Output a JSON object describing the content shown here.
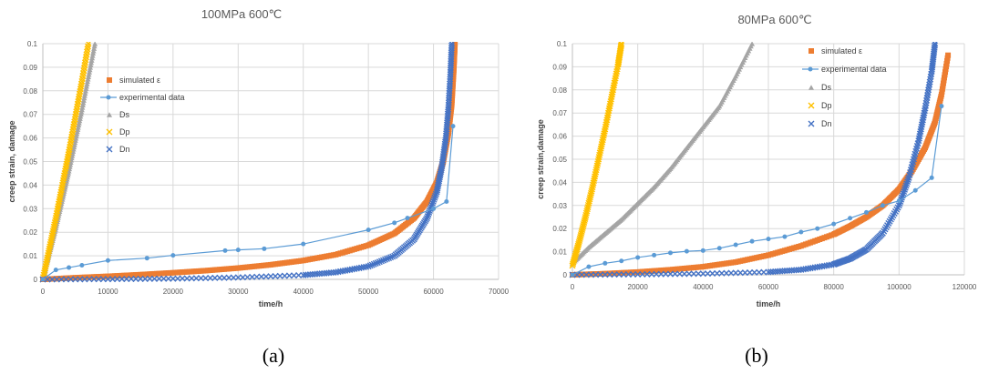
{
  "colors": {
    "simulated": "#ed7d31",
    "experimental": "#5b9bd5",
    "Ds": "#a5a5a5",
    "Dp": "#ffc000",
    "Dn": "#4472c4"
  },
  "chart_data": [
    {
      "type": "scatter",
      "title": "100MPa 600℃",
      "xlabel": "time/h",
      "ylabel": "creep strain, damage",
      "xlim": [
        0,
        70000
      ],
      "ylim": [
        0,
        0.1
      ],
      "xticks": [
        "0",
        "10000",
        "20000",
        "30000",
        "40000",
        "50000",
        "60000",
        "70000"
      ],
      "yticks": [
        "0",
        "0.01",
        "0.02",
        "0.03",
        "0.04",
        "0.05",
        "0.06",
        "0.07",
        "0.08",
        "0.09",
        "0.1"
      ],
      "grid": true,
      "legend_position": "top-left",
      "caption": "(a)",
      "series": [
        {
          "name": "simulated ε",
          "key": "simulated",
          "marker": "square",
          "x": [
            0,
            5000,
            10000,
            15000,
            20000,
            25000,
            30000,
            35000,
            40000,
            45000,
            50000,
            54000,
            57000,
            59000,
            60500,
            61500,
            62300,
            62800,
            63100,
            63300
          ],
          "y": [
            0,
            0.0007,
            0.0013,
            0.002,
            0.0028,
            0.0037,
            0.0048,
            0.0062,
            0.008,
            0.0105,
            0.0145,
            0.0195,
            0.026,
            0.033,
            0.041,
            0.05,
            0.062,
            0.074,
            0.088,
            0.1
          ]
        },
        {
          "name": "experimental data",
          "key": "experimental",
          "marker": "circle",
          "line": true,
          "x": [
            0,
            2000,
            4000,
            6000,
            10000,
            16000,
            20000,
            28000,
            30000,
            34000,
            40000,
            50000,
            54000,
            56000,
            60000,
            62000,
            63000
          ],
          "y": [
            0,
            0.004,
            0.005,
            0.006,
            0.008,
            0.009,
            0.0102,
            0.0122,
            0.0125,
            0.013,
            0.015,
            0.021,
            0.024,
            0.026,
            0.03,
            0.033,
            0.065
          ]
        },
        {
          "name": "Ds",
          "key": "Ds",
          "marker": "triangle",
          "x": [
            0,
            1000,
            2000,
            3000,
            4000,
            5000,
            6000,
            7000,
            8000
          ],
          "y": [
            0,
            0.011,
            0.022,
            0.034,
            0.046,
            0.059,
            0.072,
            0.086,
            0.1
          ]
        },
        {
          "name": "Dp",
          "key": "Dp",
          "marker": "x",
          "x": [
            0,
            1000,
            2000,
            3000,
            4000,
            5000,
            6000,
            7000
          ],
          "y": [
            0,
            0.013,
            0.026,
            0.04,
            0.054,
            0.069,
            0.084,
            0.1
          ]
        },
        {
          "name": "Dn",
          "key": "Dn",
          "marker": "x",
          "x": [
            0,
            10000,
            20000,
            30000,
            40000,
            45000,
            50000,
            54000,
            57000,
            59000,
            60500,
            61300,
            61900,
            62300,
            62600,
            62800
          ],
          "y": [
            0,
            0.0001,
            0.0003,
            0.0008,
            0.0018,
            0.003,
            0.0055,
            0.01,
            0.017,
            0.026,
            0.037,
            0.048,
            0.06,
            0.073,
            0.087,
            0.1
          ]
        }
      ]
    },
    {
      "type": "scatter",
      "title": "80MPa 600℃",
      "xlabel": "time/h",
      "ylabel": "creep strain,damage",
      "xlim": [
        0,
        120000
      ],
      "ylim": [
        0,
        0.1
      ],
      "xticks": [
        "0",
        "20000",
        "40000",
        "60000",
        "80000",
        "100000",
        "120000"
      ],
      "yticks": [
        "0",
        "0.01",
        "0.02",
        "0.03",
        "0.04",
        "0.05",
        "0.06",
        "0.07",
        "0.08",
        "0.09",
        "0.1"
      ],
      "grid": true,
      "legend_position": "top-right",
      "caption": "(b)",
      "series": [
        {
          "name": "simulated ε",
          "key": "simulated",
          "marker": "square",
          "x": [
            0,
            10000,
            20000,
            30000,
            40000,
            50000,
            60000,
            70000,
            80000,
            85000,
            90000,
            95000,
            100000,
            104000,
            108000,
            111000,
            113000,
            115000
          ],
          "y": [
            0,
            0.0005,
            0.0012,
            0.0022,
            0.0035,
            0.0055,
            0.0085,
            0.0125,
            0.0175,
            0.021,
            0.025,
            0.03,
            0.037,
            0.045,
            0.055,
            0.066,
            0.078,
            0.095
          ]
        },
        {
          "name": "experimental data",
          "key": "experimental",
          "marker": "circle",
          "line": true,
          "x": [
            0,
            5000,
            10000,
            15000,
            20000,
            25000,
            30000,
            35000,
            40000,
            45000,
            50000,
            55000,
            60000,
            65000,
            70000,
            75000,
            80000,
            85000,
            90000,
            95000,
            100000,
            105000,
            110000,
            113000
          ],
          "y": [
            0,
            0.0035,
            0.005,
            0.006,
            0.0075,
            0.0085,
            0.0095,
            0.0102,
            0.0105,
            0.0115,
            0.013,
            0.0145,
            0.0155,
            0.0165,
            0.0185,
            0.02,
            0.022,
            0.0245,
            0.027,
            0.03,
            0.032,
            0.0365,
            0.042,
            0.073
          ]
        },
        {
          "name": "Ds",
          "key": "Ds",
          "marker": "triangle",
          "x": [
            0,
            5000,
            10000,
            15000,
            20000,
            25000,
            30000,
            35000,
            40000,
            45000,
            50000,
            55000
          ],
          "y": [
            0.005,
            0.012,
            0.018,
            0.024,
            0.031,
            0.038,
            0.046,
            0.055,
            0.064,
            0.073,
            0.086,
            0.1
          ]
        },
        {
          "name": "Dp",
          "key": "Dp",
          "marker": "x",
          "x": [
            0,
            2000,
            4000,
            6000,
            8000,
            10000,
            12000,
            14000,
            15000
          ],
          "y": [
            0.004,
            0.014,
            0.025,
            0.037,
            0.05,
            0.063,
            0.077,
            0.091,
            0.1
          ]
        },
        {
          "name": "Dn",
          "key": "Dn",
          "marker": "x",
          "x": [
            0,
            20000,
            40000,
            60000,
            70000,
            80000,
            85000,
            90000,
            95000,
            100000,
            103000,
            106000,
            108000,
            110000,
            111000
          ],
          "y": [
            0,
            0.0002,
            0.0005,
            0.0012,
            0.0022,
            0.0045,
            0.007,
            0.011,
            0.018,
            0.03,
            0.042,
            0.058,
            0.072,
            0.088,
            0.1
          ]
        }
      ]
    }
  ]
}
